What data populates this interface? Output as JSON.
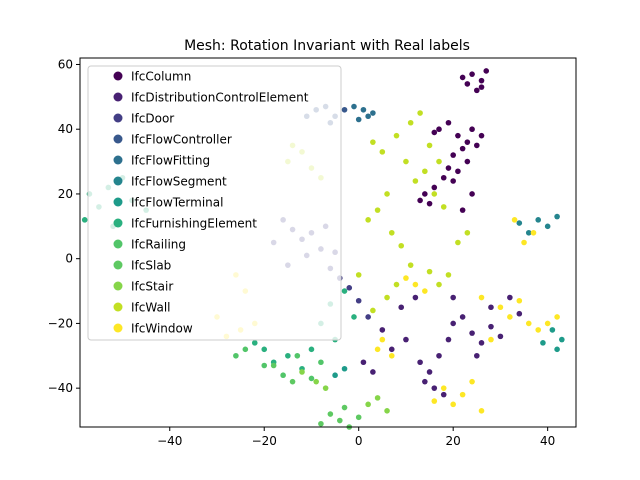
{
  "chart_data": {
    "type": "scatter",
    "title": "Mesh: Rotation Invariant with Real labels",
    "xlabel": "",
    "ylabel": "",
    "xlim": [
      -59,
      46
    ],
    "ylim": [
      -52,
      62
    ],
    "xticks": [
      -40,
      -20,
      0,
      20,
      40
    ],
    "yticks": [
      -40,
      -20,
      0,
      20,
      40,
      60
    ],
    "grid": false,
    "legend_position": "top-left",
    "series": [
      {
        "name": "IfcColumn",
        "color": "#440154",
        "points": [
          [
            24,
            57
          ],
          [
            26,
            55
          ],
          [
            27,
            58
          ],
          [
            23,
            54
          ],
          [
            25,
            52
          ],
          [
            22,
            56
          ],
          [
            26,
            53
          ],
          [
            21,
            38
          ],
          [
            23,
            36
          ],
          [
            24,
            40
          ],
          [
            22,
            34
          ],
          [
            20,
            32
          ],
          [
            19,
            28
          ],
          [
            21,
            27
          ],
          [
            23,
            30
          ],
          [
            25,
            35
          ],
          [
            26,
            38
          ],
          [
            18,
            25
          ],
          [
            20,
            24
          ],
          [
            17,
            40
          ],
          [
            19,
            42
          ],
          [
            16,
            39
          ],
          [
            14,
            20
          ],
          [
            13,
            18
          ],
          [
            15,
            17
          ],
          [
            16,
            22
          ],
          [
            22,
            15
          ],
          [
            24,
            20
          ]
        ]
      },
      {
        "name": "IfcDistributionControlElement",
        "color": "#482173",
        "points": [
          [
            5,
            -22
          ],
          [
            7,
            -28
          ],
          [
            10,
            -25
          ],
          [
            13,
            -32
          ],
          [
            15,
            -35
          ],
          [
            17,
            -30
          ],
          [
            20,
            -20
          ],
          [
            22,
            -18
          ],
          [
            24,
            -23
          ],
          [
            26,
            -26
          ],
          [
            28,
            -21
          ],
          [
            30,
            -24
          ],
          [
            32,
            -12
          ],
          [
            34,
            -17
          ],
          [
            16,
            -40
          ],
          [
            18,
            -42
          ],
          [
            14,
            -38
          ],
          [
            20,
            -12
          ],
          [
            19,
            -25
          ],
          [
            25,
            -30
          ],
          [
            28,
            -15
          ],
          [
            3,
            -35
          ],
          [
            1,
            -32
          ],
          [
            9,
            -15
          ],
          [
            12,
            -12
          ]
        ]
      },
      {
        "name": "IfcDoor",
        "color": "#433e85",
        "points": [
          [
            -16,
            12
          ],
          [
            -14,
            9
          ],
          [
            -12,
            6
          ],
          [
            -10,
            8
          ],
          [
            -18,
            5
          ],
          [
            -8,
            3
          ],
          [
            -6,
            -3
          ],
          [
            -4,
            -6
          ],
          [
            -2,
            -9
          ],
          [
            0,
            -13
          ],
          [
            2,
            -18
          ],
          [
            -15,
            -2
          ],
          [
            -11,
            1
          ],
          [
            -5,
            2
          ],
          [
            -7,
            10
          ]
        ]
      },
      {
        "name": "IfcFlowController",
        "color": "#38588c",
        "points": [
          [
            -9,
            46
          ],
          [
            -7,
            47
          ],
          [
            -5,
            44
          ],
          [
            -3,
            46
          ],
          [
            -11,
            44
          ],
          [
            -6,
            42
          ]
        ]
      },
      {
        "name": "IfcFlowFitting",
        "color": "#2d708e",
        "points": [
          [
            -1,
            47
          ],
          [
            1,
            46
          ],
          [
            2,
            44
          ],
          [
            3,
            45
          ],
          [
            0,
            43
          ]
        ]
      },
      {
        "name": "IfcFlowSegment",
        "color": "#25858e",
        "points": [
          [
            38,
            12
          ],
          [
            40,
            10
          ],
          [
            42,
            13
          ],
          [
            36,
            8
          ],
          [
            34,
            11
          ]
        ]
      },
      {
        "name": "IfcFlowTerminal",
        "color": "#1e9b8a",
        "points": [
          [
            43,
            -25
          ],
          [
            42,
            -28
          ],
          [
            41,
            -22
          ],
          [
            39,
            -26
          ],
          [
            -5,
            -36
          ],
          [
            -3,
            -34
          ]
        ]
      },
      {
        "name": "IfcFurnishingElement",
        "color": "#2ab07f",
        "points": [
          [
            -57,
            20
          ],
          [
            -55,
            16
          ],
          [
            -58,
            12
          ],
          [
            -53,
            22
          ],
          [
            -50,
            25
          ],
          [
            -48,
            18
          ],
          [
            -45,
            15
          ],
          [
            -52,
            10
          ],
          [
            -20,
            -28
          ],
          [
            -18,
            -32
          ],
          [
            -15,
            -30
          ],
          [
            -12,
            -34
          ],
          [
            -10,
            -28
          ],
          [
            -22,
            -26
          ],
          [
            -8,
            -20
          ],
          [
            -5,
            -25
          ],
          [
            -3,
            -10
          ],
          [
            -1,
            -18
          ],
          [
            -6,
            -14
          ]
        ]
      },
      {
        "name": "IfcRailing",
        "color": "#52c569",
        "points": [
          [
            -24,
            -28
          ],
          [
            -20,
            -33
          ],
          [
            -16,
            -36
          ],
          [
            -13,
            -30
          ],
          [
            -10,
            -37
          ],
          [
            -8,
            -32
          ],
          [
            -26,
            -30
          ]
        ]
      },
      {
        "name": "IfcSlab",
        "color": "#5ec962",
        "points": [
          [
            -6,
            -48
          ],
          [
            -4,
            -50
          ],
          [
            -2,
            -52
          ],
          [
            0,
            -49
          ],
          [
            -8,
            -51
          ],
          [
            -3,
            -46
          ],
          [
            -18,
            -33
          ],
          [
            -14,
            -38
          ]
        ]
      },
      {
        "name": "IfcStair",
        "color": "#86d549",
        "points": [
          [
            -12,
            -35
          ],
          [
            -9,
            -38
          ],
          [
            -7,
            -40
          ],
          [
            2,
            -45
          ],
          [
            4,
            -43
          ],
          [
            6,
            -47
          ]
        ]
      },
      {
        "name": "IfcWall",
        "color": "#c2df23",
        "points": [
          [
            3,
            36
          ],
          [
            5,
            33
          ],
          [
            8,
            38
          ],
          [
            10,
            30
          ],
          [
            12,
            24
          ],
          [
            14,
            27
          ],
          [
            16,
            20
          ],
          [
            18,
            16
          ],
          [
            11,
            42
          ],
          [
            13,
            45
          ],
          [
            15,
            35
          ],
          [
            17,
            30
          ],
          [
            6,
            20
          ],
          [
            4,
            15
          ],
          [
            2,
            12
          ],
          [
            7,
            8
          ],
          [
            9,
            4
          ],
          [
            11,
            -2
          ],
          [
            8,
            -8
          ],
          [
            6,
            -12
          ],
          [
            3,
            -16
          ],
          [
            0,
            -5
          ],
          [
            15,
            -4
          ],
          [
            17,
            -8
          ],
          [
            19,
            -5
          ],
          [
            21,
            5
          ],
          [
            23,
            8
          ],
          [
            -8,
            25
          ],
          [
            -10,
            28
          ],
          [
            -12,
            33
          ],
          [
            -15,
            30
          ],
          [
            -14,
            35
          ]
        ]
      },
      {
        "name": "IfcWindow",
        "color": "#fde725",
        "points": [
          [
            20,
            -45
          ],
          [
            22,
            -42
          ],
          [
            18,
            -40
          ],
          [
            24,
            -38
          ],
          [
            26,
            -47
          ],
          [
            16,
            -44
          ],
          [
            5,
            -25
          ],
          [
            4,
            -28
          ],
          [
            7,
            -30
          ],
          [
            30,
            -15
          ],
          [
            32,
            -18
          ],
          [
            34,
            -13
          ],
          [
            36,
            -20
          ],
          [
            38,
            -22
          ],
          [
            28,
            -25
          ],
          [
            26,
            -12
          ],
          [
            35,
            5
          ],
          [
            37,
            8
          ],
          [
            33,
            12
          ],
          [
            12,
            -8
          ],
          [
            14,
            -10
          ],
          [
            10,
            -6
          ],
          [
            -25,
            -22
          ],
          [
            -22,
            -20
          ],
          [
            -28,
            -24
          ],
          [
            -30,
            -18
          ],
          [
            -24,
            -10
          ],
          [
            -26,
            -5
          ],
          [
            40,
            -20
          ],
          [
            42,
            -18
          ]
        ]
      }
    ]
  }
}
